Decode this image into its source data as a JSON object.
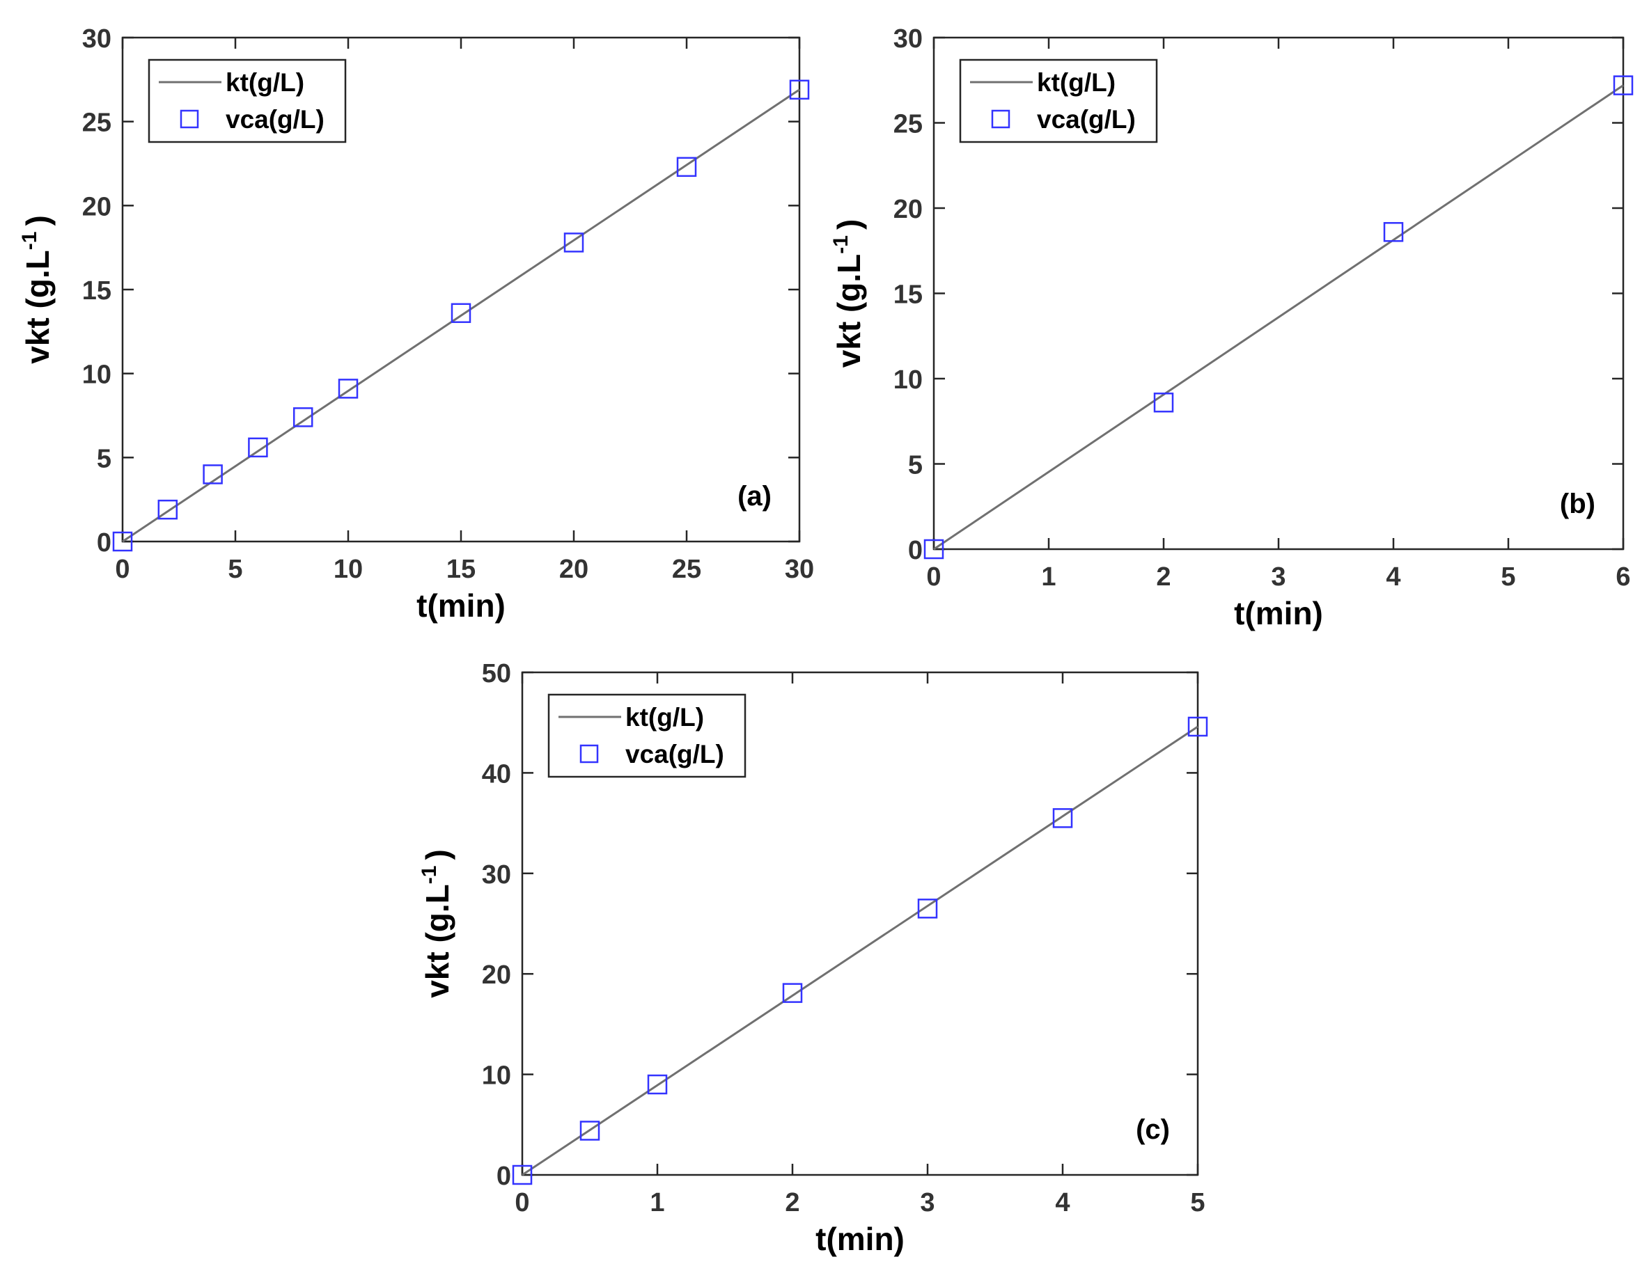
{
  "colors": {
    "line": "#707070",
    "marker": "#3333ff",
    "axis": "#262626",
    "text": "#000000"
  },
  "chart_data": [
    {
      "type": "line",
      "panel_label": "(a)",
      "xlabel": "t(min)",
      "ylabel": "vkt (g.L",
      "ylabel_sup": "-1",
      "ylabel_close": ")",
      "xlim": [
        0,
        30
      ],
      "ylim": [
        0,
        30
      ],
      "xticks": [
        0,
        5,
        10,
        15,
        20,
        25,
        30
      ],
      "yticks": [
        0,
        5,
        10,
        15,
        20,
        25,
        30
      ],
      "grid": false,
      "legend_position": "top-left",
      "series": [
        {
          "name": "kt(g/L)",
          "style": "line",
          "x": [
            0,
            30
          ],
          "y": [
            0,
            26.9
          ]
        },
        {
          "name": "vca(g/L)",
          "style": "square-markers",
          "x": [
            0,
            2,
            4,
            6,
            8,
            10,
            15,
            20,
            25,
            30
          ],
          "y": [
            0,
            1.9,
            4.0,
            5.6,
            7.4,
            9.1,
            13.6,
            17.8,
            22.3,
            26.9
          ]
        }
      ]
    },
    {
      "type": "line",
      "panel_label": "(b)",
      "xlabel": "t(min)",
      "ylabel": "vkt (g.L",
      "ylabel_sup": "-1",
      "ylabel_close": ")",
      "xlim": [
        0,
        6
      ],
      "ylim": [
        0,
        30
      ],
      "xticks": [
        0,
        1,
        2,
        3,
        4,
        5,
        6
      ],
      "yticks": [
        0,
        5,
        10,
        15,
        20,
        25,
        30
      ],
      "grid": false,
      "legend_position": "top-left",
      "series": [
        {
          "name": "kt(g/L)",
          "style": "line",
          "x": [
            0,
            6
          ],
          "y": [
            0,
            27.2
          ]
        },
        {
          "name": "vca(g/L)",
          "style": "square-markers",
          "x": [
            0,
            2,
            4,
            6
          ],
          "y": [
            0,
            8.6,
            18.6,
            27.2
          ]
        }
      ]
    },
    {
      "type": "line",
      "panel_label": "(c)",
      "xlabel": "t(min)",
      "ylabel": "vkt (g.L",
      "ylabel_sup": "-1",
      "ylabel_close": ")",
      "xlim": [
        0,
        5
      ],
      "ylim": [
        0,
        50
      ],
      "xticks": [
        0,
        1,
        2,
        3,
        4,
        5
      ],
      "yticks": [
        0,
        10,
        20,
        30,
        40,
        50
      ],
      "grid": false,
      "legend_position": "top-left",
      "series": [
        {
          "name": "kt(g/L)",
          "style": "line",
          "x": [
            0,
            5
          ],
          "y": [
            0,
            44.6
          ]
        },
        {
          "name": "vca(g/L)",
          "style": "square-markers",
          "x": [
            0,
            0.5,
            1,
            2,
            3,
            4,
            5
          ],
          "y": [
            0,
            4.4,
            9.0,
            18.1,
            26.5,
            35.5,
            44.6
          ]
        }
      ]
    }
  ]
}
